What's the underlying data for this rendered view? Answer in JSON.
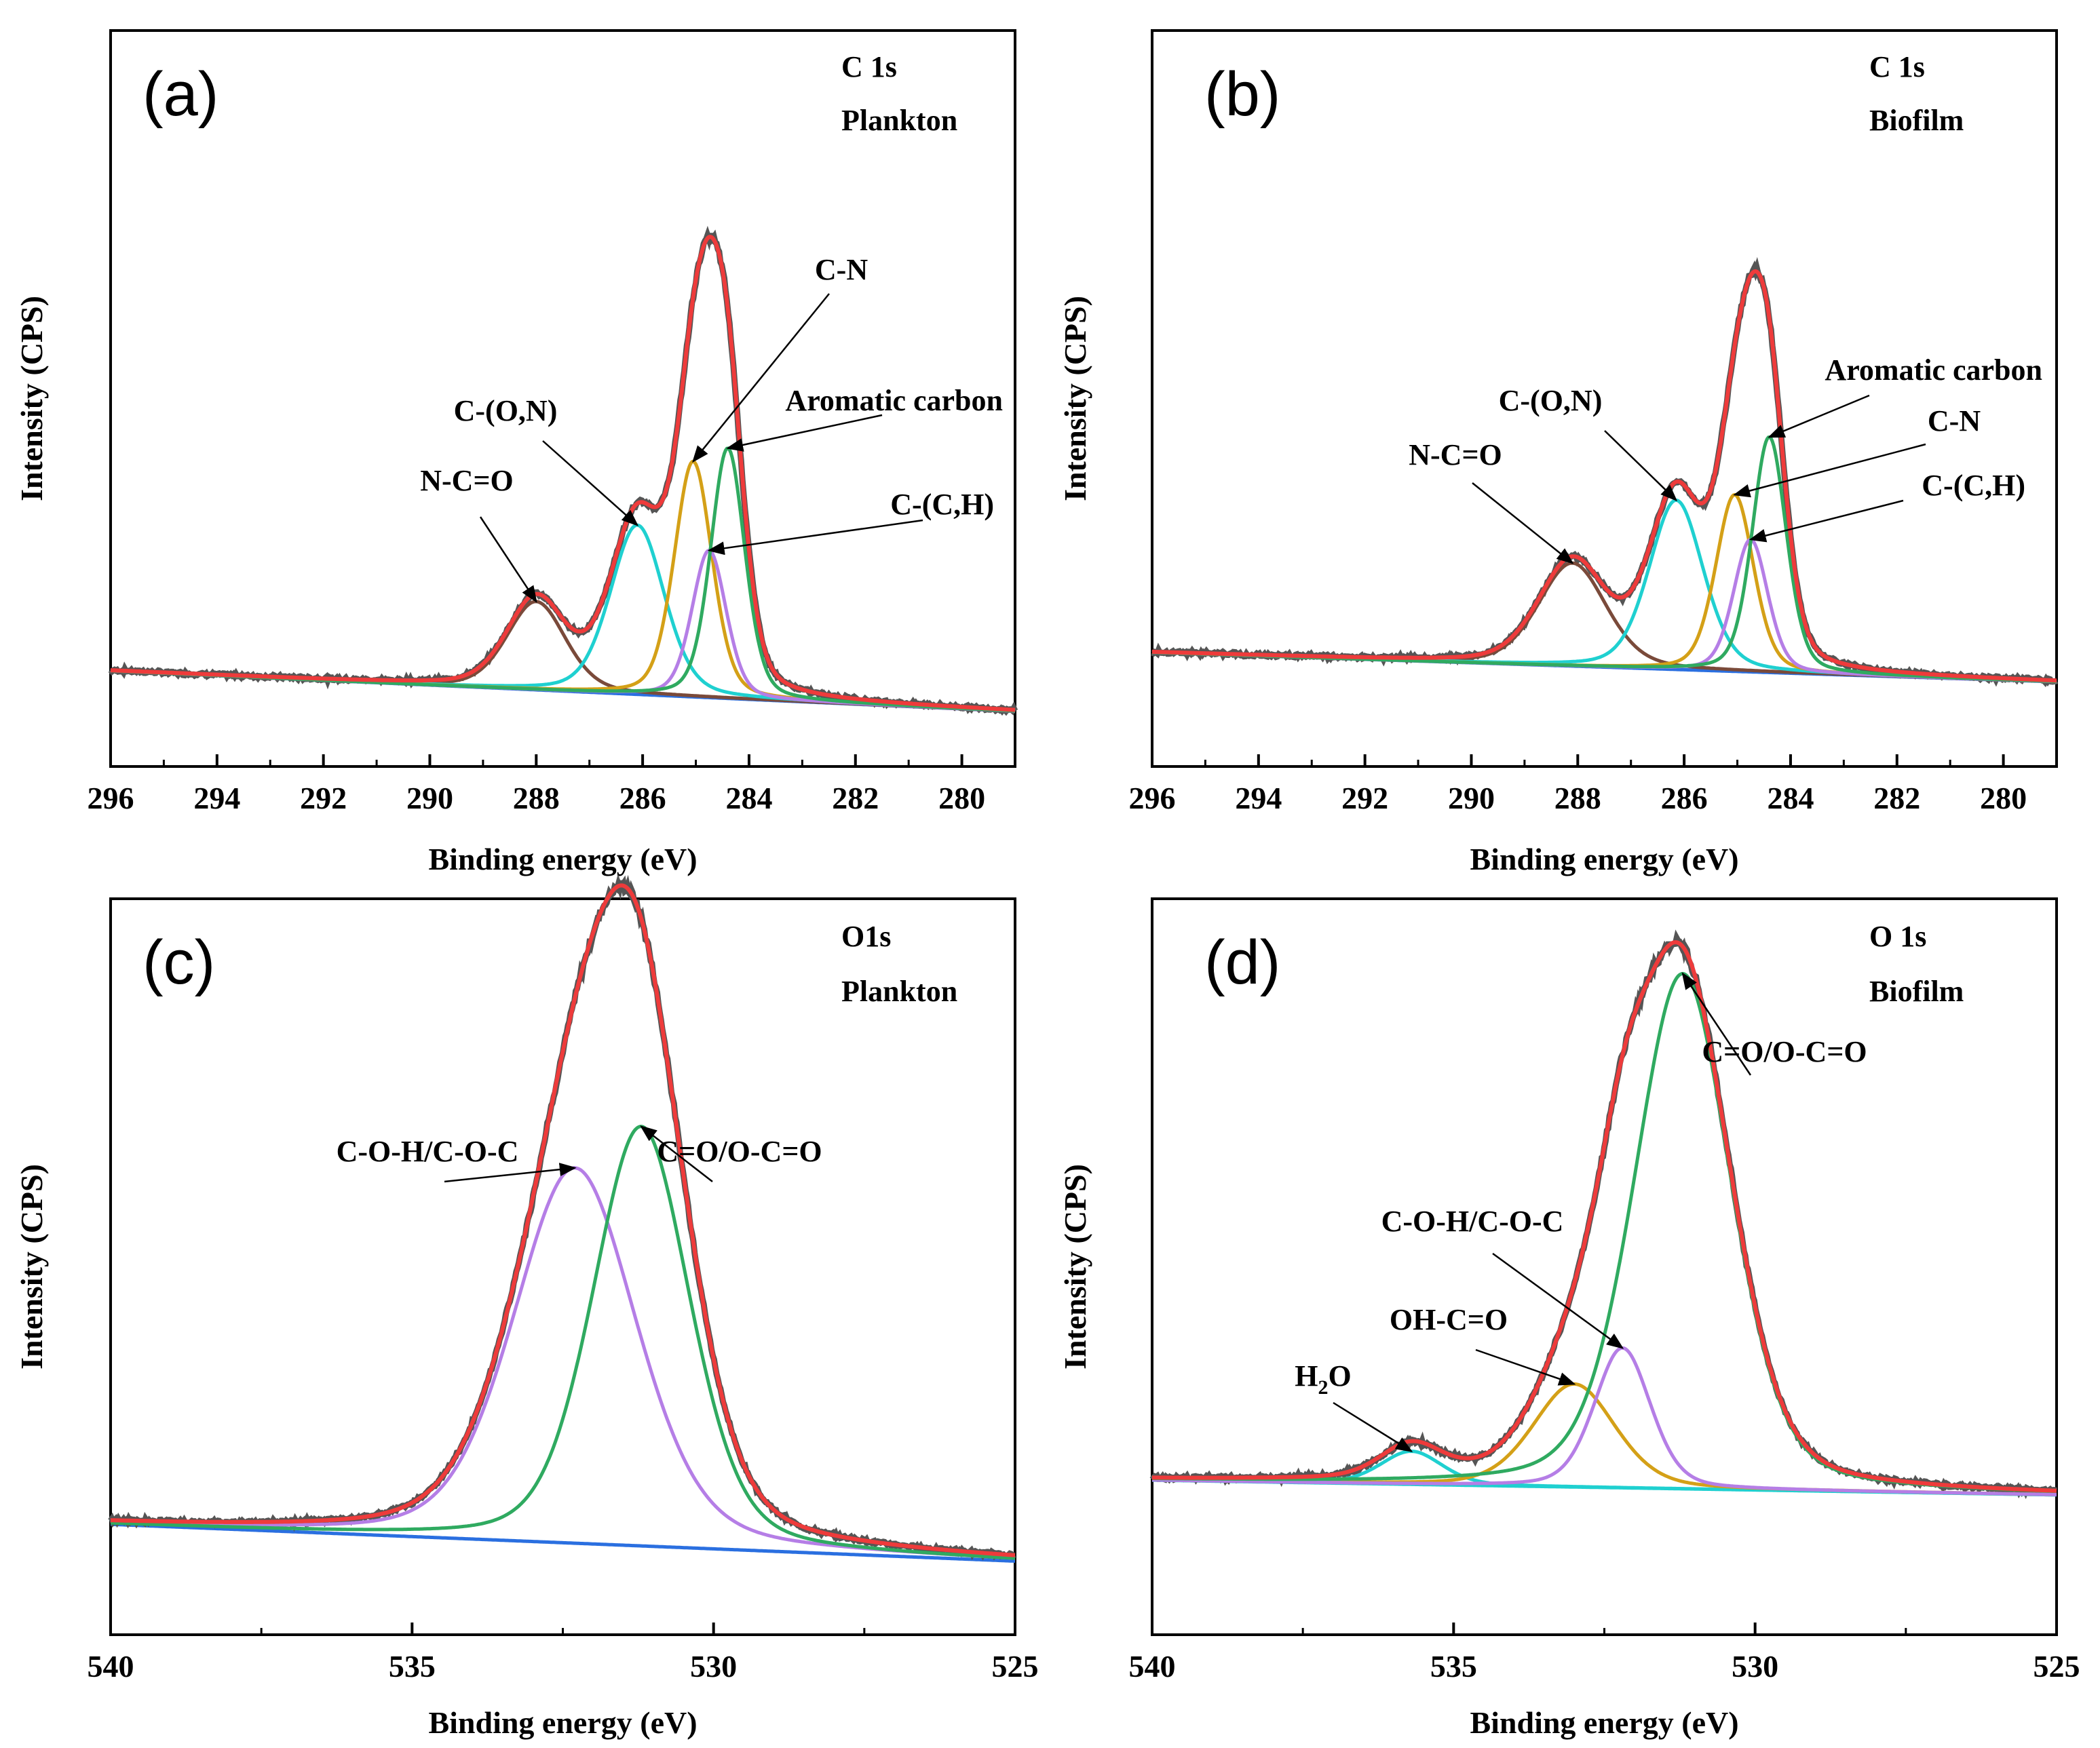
{
  "chart_data": [
    {
      "type": "line",
      "panel_label": "(a)",
      "corner_text": [
        "C 1s",
        "Plankton"
      ],
      "xlabel": "Binding energy (eV)",
      "ylabel": "Intensity (CPS)",
      "xlim": [
        296,
        279
      ],
      "x_ticks": [
        296,
        294,
        292,
        290,
        288,
        286,
        284,
        282,
        280
      ],
      "baseline": {
        "start": 0.13,
        "end": 0.075
      },
      "experimental_color": "#555555",
      "envelope_color": "#ee3b3b",
      "background_color": "#2a6fe0",
      "components": [
        {
          "name": "N-C=O",
          "center": 288.0,
          "amp": 0.12,
          "width": 0.65,
          "color": "#7a4a3a"
        },
        {
          "name": "C-(O,N)",
          "center": 286.1,
          "amp": 0.23,
          "width": 0.6,
          "color": "#1fd0d0"
        },
        {
          "name": "C-N",
          "center": 285.05,
          "amp": 0.32,
          "width": 0.42,
          "color": "#d4a017"
        },
        {
          "name": "C-(C,H)",
          "center": 284.75,
          "amp": 0.2,
          "width": 0.38,
          "color": "#b57ee6"
        },
        {
          "name": "Aromatic carbon",
          "center": 284.4,
          "amp": 0.34,
          "width": 0.38,
          "color": "#2faa60"
        }
      ],
      "annotations": [
        {
          "text": "N-C=O",
          "peak": "N-C=O"
        },
        {
          "text": "C-(O,N)",
          "peak": "C-(O,N)"
        },
        {
          "text": "C-N",
          "peak": "C-N"
        },
        {
          "text": "Aromatic carbon",
          "peak": "Aromatic carbon"
        },
        {
          "text": "C-(C,H)",
          "peak": "C-(C,H)"
        }
      ]
    },
    {
      "type": "line",
      "panel_label": "(b)",
      "corner_text": [
        "C 1s",
        "Biofilm"
      ],
      "xlabel": "Binding energy (eV)",
      "ylabel": "Intensity (CPS)",
      "xlim": [
        296,
        279
      ],
      "x_ticks": [
        296,
        294,
        292,
        290,
        288,
        286,
        284,
        282,
        280
      ],
      "baseline": {
        "start": 0.155,
        "end": 0.115
      },
      "experimental_color": "#555555",
      "envelope_color": "#ee3b3b",
      "background_color": "#2a6fe0",
      "components": [
        {
          "name": "N-C=O",
          "center": 288.1,
          "amp": 0.14,
          "width": 0.75,
          "color": "#7a4a3a"
        },
        {
          "name": "C-(O,N)",
          "center": 286.15,
          "amp": 0.23,
          "width": 0.6,
          "color": "#1fd0d0"
        },
        {
          "name": "C-N",
          "center": 285.05,
          "amp": 0.24,
          "width": 0.42,
          "color": "#d4a017"
        },
        {
          "name": "C-(C,H)",
          "center": 284.75,
          "amp": 0.18,
          "width": 0.38,
          "color": "#b57ee6"
        },
        {
          "name": "Aromatic carbon",
          "center": 284.4,
          "amp": 0.32,
          "width": 0.38,
          "color": "#2faa60"
        }
      ],
      "annotations": [
        {
          "text": "N-C=O",
          "peak": "N-C=O"
        },
        {
          "text": "C-(O,N)",
          "peak": "C-(O,N)"
        },
        {
          "text": "Aromatic carbon",
          "peak": "Aromatic carbon"
        },
        {
          "text": "C-N",
          "peak": "C-N"
        },
        {
          "text": "C-(C,H)",
          "peak": "C-(C,H)"
        }
      ]
    },
    {
      "type": "line",
      "panel_label": "(c)",
      "corner_text": [
        "O1s",
        "Plankton"
      ],
      "xlabel": "Binding energy (eV)",
      "ylabel": "Intensity (CPS)",
      "xlim": [
        540,
        525
      ],
      "x_ticks": [
        540,
        535,
        530,
        525
      ],
      "baseline": {
        "start": 0.15,
        "end": 0.1
      },
      "experimental_color": "#555555",
      "envelope_color": "#ee3b3b",
      "background_color": "#2a6fe0",
      "components": [
        {
          "name": "C-O-H/C-O-C",
          "center": 532.3,
          "amp": 0.51,
          "width": 1.2,
          "color": "#b57ee6"
        },
        {
          "name": "C=O/O-C=O",
          "center": 531.2,
          "amp": 0.57,
          "width": 0.95,
          "color": "#2faa60"
        }
      ],
      "annotations": [
        {
          "text": "C-O-H/C-O-C",
          "peak": "C-O-H/C-O-C"
        },
        {
          "text": "C=O/O-C=O",
          "peak": "C=O/O-C=O"
        }
      ]
    },
    {
      "type": "line",
      "panel_label": "(d)",
      "corner_text": [
        "O 1s",
        "Biofilm"
      ],
      "xlabel": "Binding energy (eV)",
      "ylabel": "Intensity (CPS)",
      "xlim": [
        540,
        525
      ],
      "x_ticks": [
        540,
        535,
        530,
        525
      ],
      "baseline": {
        "start": 0.21,
        "end": 0.19
      },
      "experimental_color": "#555555",
      "envelope_color": "#ee3b3b",
      "background_color": "#1fd0d0",
      "components": [
        {
          "name": "H2O",
          "center": 535.7,
          "amp": 0.045,
          "width": 0.6,
          "color": "#1fd0d0"
        },
        {
          "name": "OH-C=O",
          "center": 533.0,
          "amp": 0.14,
          "width": 0.8,
          "color": "#d4a017"
        },
        {
          "name": "C-O-H/C-O-C",
          "center": 532.2,
          "amp": 0.19,
          "width": 0.55,
          "color": "#b57ee6"
        },
        {
          "name": "C=O/O-C=O",
          "center": 531.2,
          "amp": 0.7,
          "width": 0.95,
          "color": "#2faa60"
        }
      ],
      "annotations": [
        {
          "text": "C=O/O-C=O",
          "peak": "C=O/O-C=O"
        },
        {
          "text": "C-O-H/C-O-C",
          "peak": "C-O-H/C-O-C"
        },
        {
          "text": "OH-C=O",
          "peak": "OH-C=O"
        },
        {
          "text": "H",
          "sub": "2",
          "tail": "O",
          "peak": "H2O"
        }
      ]
    }
  ]
}
